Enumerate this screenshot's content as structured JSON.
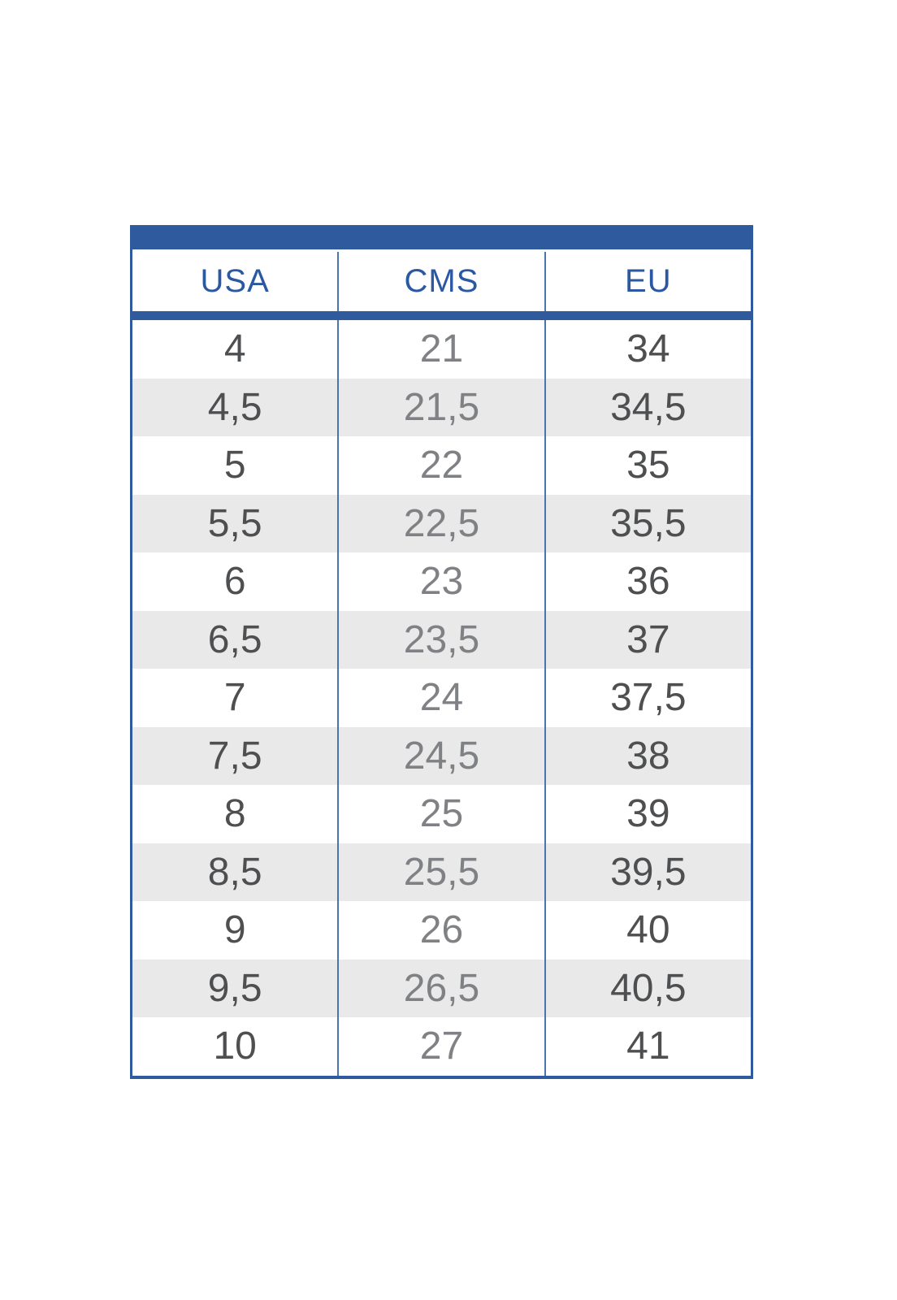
{
  "colors": {
    "accent_blue": "#2f5a9d",
    "divider_blue": "#4a74ae",
    "row_alt_gray": "#e9e9e9",
    "header_text_blue": "#2b59a1",
    "cell_text_dark": "#4e4f51",
    "cell_text_mid": "#7f8184",
    "background": "#ffffff"
  },
  "chart_data": {
    "type": "table",
    "title": "",
    "columns": [
      "USA",
      "CMS",
      "EU"
    ],
    "rows": [
      [
        "4",
        "21",
        "34"
      ],
      [
        "4,5",
        "21,5",
        "34,5"
      ],
      [
        "5",
        "22",
        "35"
      ],
      [
        "5,5",
        "22,5",
        "35,5"
      ],
      [
        "6",
        "23",
        "36"
      ],
      [
        "6,5",
        "23,5",
        "37"
      ],
      [
        "7",
        "24",
        "37,5"
      ],
      [
        "7,5",
        "24,5",
        "38"
      ],
      [
        "8",
        "25",
        "39"
      ],
      [
        "8,5",
        "25,5",
        "39,5"
      ],
      [
        "9",
        "26",
        "40"
      ],
      [
        "9,5",
        "26,5",
        "40,5"
      ],
      [
        "10",
        "27",
        "41"
      ]
    ],
    "layout": {
      "alternating_rows": true,
      "first_data_row_background": "white",
      "decimal_separator": "comma"
    }
  }
}
